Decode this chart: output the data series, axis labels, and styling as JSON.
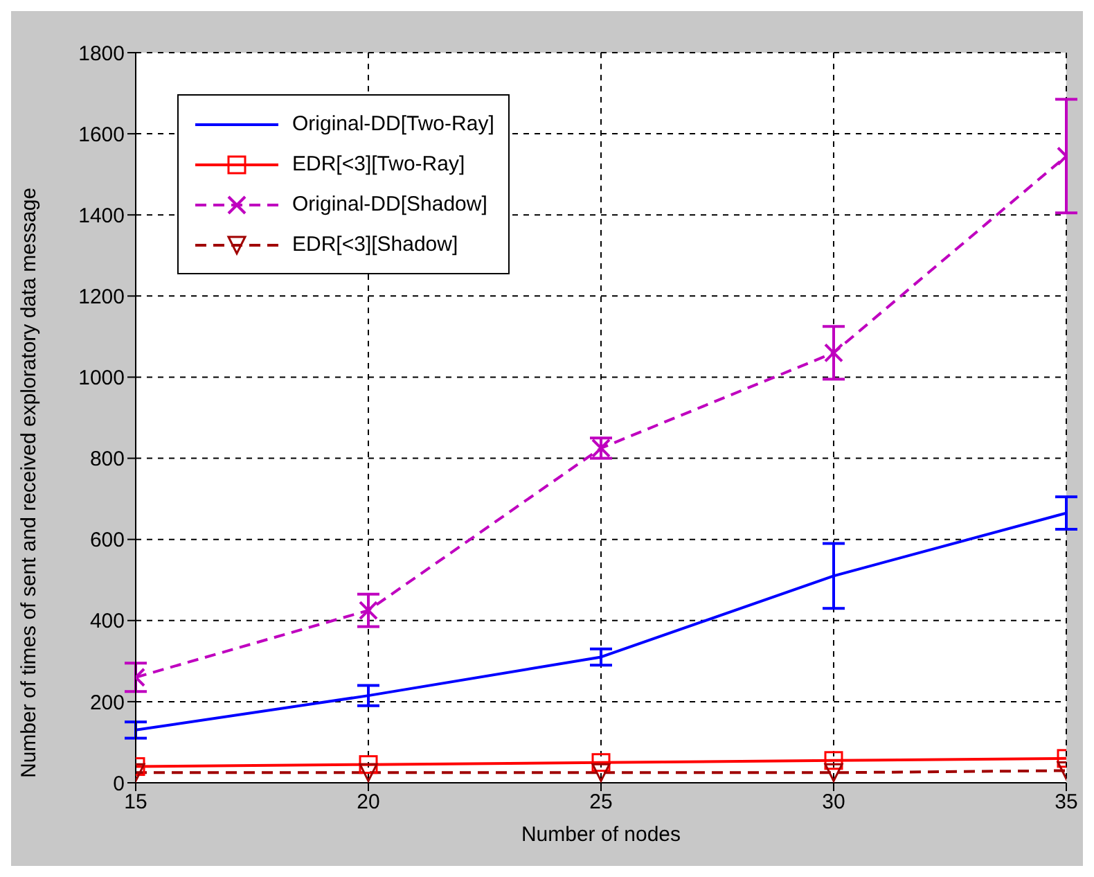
{
  "chart_data": {
    "type": "line",
    "xlabel": "Number of nodes",
    "ylabel": "Number of times of sent and received exploratory data message",
    "x": [
      15,
      20,
      25,
      30,
      35
    ],
    "series": [
      {
        "name": "Original-DD[Two-Ray]",
        "color": "#0000ff",
        "values": [
          130,
          215,
          310,
          510,
          665
        ],
        "errors": [
          20,
          25,
          20,
          80,
          40
        ],
        "marker": "none",
        "line_style": "solid"
      },
      {
        "name": "EDR[<3][Two-Ray]",
        "color": "#ff0000",
        "values": [
          40,
          45,
          50,
          55,
          60
        ],
        "marker": "square",
        "line_style": "solid"
      },
      {
        "name": "Original-DD[Shadow]",
        "color": "#bf00bf",
        "values": [
          260,
          425,
          825,
          1060,
          1545
        ],
        "errors": [
          35,
          40,
          25,
          65,
          140
        ],
        "marker": "cross",
        "line_style": "dashed"
      },
      {
        "name": "EDR[<3][Shadow]",
        "color": "#a00000",
        "values": [
          25,
          25,
          25,
          25,
          30
        ],
        "marker": "triangle",
        "line_style": "dashed"
      }
    ],
    "xlim": [
      15,
      35
    ],
    "xticks": [
      15,
      20,
      25,
      30,
      35
    ],
    "ylim": [
      0,
      1800
    ],
    "yticks": [
      0,
      200,
      400,
      600,
      800,
      1000,
      1200,
      1400,
      1600,
      1800
    ],
    "grid": true,
    "legend": "top left"
  }
}
